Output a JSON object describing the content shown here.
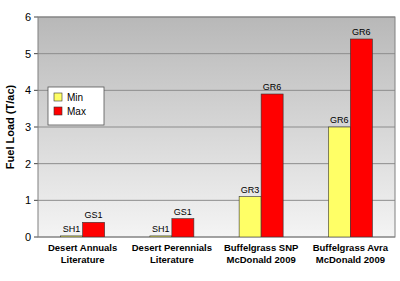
{
  "chart_data": {
    "type": "bar",
    "y_label": "Fuel Load (T/ac)",
    "categories": [
      "Desert Annuals\nLiterature",
      "Desert Perennials\nLiterature",
      "Buffelgrass SNP\nMcDonald 2009",
      "Buffelgrass Avra\nMcDonald 2009"
    ],
    "series": [
      {
        "name": "Min",
        "color": "#ffff66",
        "values": [
          0.03,
          0.03,
          1.1,
          3.0
        ],
        "labels": [
          "SH1",
          "SH1",
          "GR3",
          "GR6"
        ]
      },
      {
        "name": "Max",
        "color": "#ff0000",
        "values": [
          0.4,
          0.5,
          3.9,
          5.4
        ],
        "labels": [
          "GS1",
          "GS1",
          "GR6",
          "GR6"
        ]
      }
    ],
    "ylim": [
      0,
      6
    ],
    "yticks": [
      0,
      1,
      2,
      3,
      4,
      5,
      6
    ],
    "grid": true,
    "legend": "upper left"
  }
}
